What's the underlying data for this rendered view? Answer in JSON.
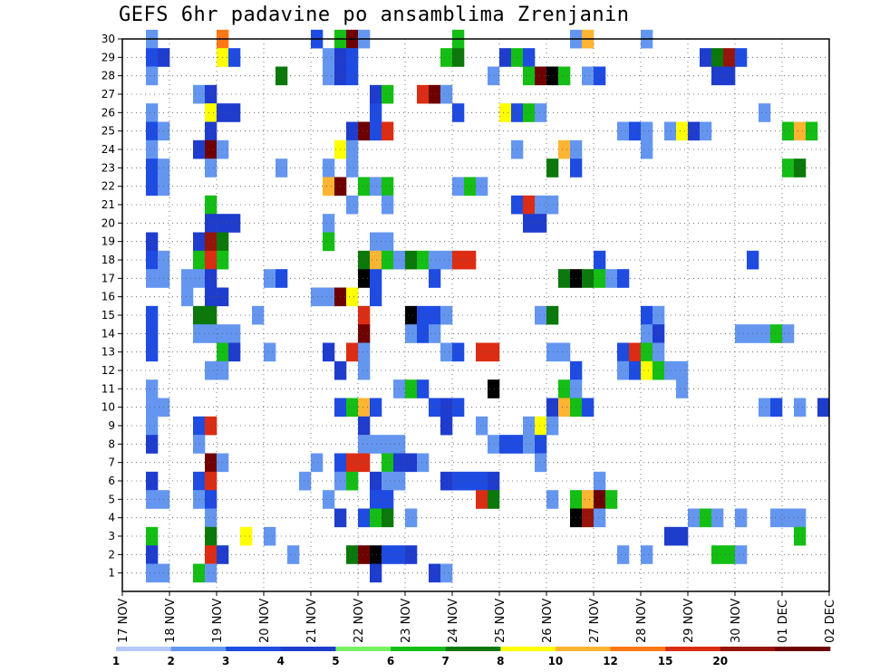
{
  "title": "GEFS 6hr padavine po ansamblima Zrenjanin",
  "chart_data": {
    "type": "heatmap",
    "title": "GEFS 6hr padavine po ansamblima Zrenjanin",
    "xlabel": "",
    "ylabel": "",
    "y_ticks": [
      "1",
      "2",
      "3",
      "4",
      "5",
      "6",
      "7",
      "8",
      "9",
      "10",
      "11",
      "12",
      "13",
      "14",
      "15",
      "16",
      "17",
      "18",
      "19",
      "20",
      "21",
      "22",
      "23",
      "24",
      "25",
      "26",
      "27",
      "28",
      "29",
      "30"
    ],
    "x_ticks": [
      "17 NOV",
      "18 NOV",
      "19 NOV",
      "20 NOV",
      "21 NOV",
      "22 NOV",
      "23 NOV",
      "24 NOV",
      "25 NOV",
      "26 NOV",
      "27 NOV",
      "28 NOV",
      "29 NOV",
      "30 NOV",
      "01 DEC",
      "02 DEC"
    ],
    "x_range_steps": [
      0,
      60
    ],
    "y_range": [
      0,
      30
    ],
    "steps_per_day": 4,
    "colorbar": {
      "labels": [
        "1",
        "2",
        "3",
        "4",
        "5",
        "6",
        "7",
        "8",
        "10",
        "12",
        "15",
        "20"
      ],
      "colors": [
        "#b4c8fa",
        "#6496f0",
        "#1e4be1",
        "#1e3ccd",
        "#78f064",
        "#14be14",
        "#0a780a",
        "#ffff00",
        "#ffb432",
        "#ff7814",
        "#dc2d14",
        "#96140a",
        "#6e0000"
      ]
    },
    "cells": [
      [
        30,
        2,
        1
      ],
      [
        30,
        8,
        9
      ],
      [
        30,
        16,
        2
      ],
      [
        30,
        18,
        5
      ],
      [
        30,
        19,
        12
      ],
      [
        30,
        20,
        1
      ],
      [
        30,
        28,
        5
      ],
      [
        30,
        38,
        1
      ],
      [
        30,
        39,
        8
      ],
      [
        30,
        44,
        1
      ],
      [
        29,
        2,
        2
      ],
      [
        29,
        3,
        3
      ],
      [
        29,
        8,
        7
      ],
      [
        29,
        9,
        2
      ],
      [
        29,
        17,
        1
      ],
      [
        29,
        18,
        3
      ],
      [
        29,
        19,
        2
      ],
      [
        29,
        27,
        5
      ],
      [
        29,
        28,
        6
      ],
      [
        29,
        32,
        3
      ],
      [
        29,
        33,
        5
      ],
      [
        29,
        34,
        2
      ],
      [
        29,
        49,
        3
      ],
      [
        29,
        50,
        6
      ],
      [
        29,
        51,
        11
      ],
      [
        29,
        52,
        2
      ],
      [
        28,
        2,
        1
      ],
      [
        28,
        13,
        6
      ],
      [
        28,
        17,
        1
      ],
      [
        28,
        18,
        3
      ],
      [
        28,
        19,
        2
      ],
      [
        28,
        31,
        1
      ],
      [
        28,
        34,
        5
      ],
      [
        28,
        35,
        12
      ],
      [
        28,
        36,
        13
      ],
      [
        28,
        37,
        5
      ],
      [
        28,
        39,
        1
      ],
      [
        28,
        40,
        2
      ],
      [
        28,
        50,
        3
      ],
      [
        28,
        51,
        3
      ],
      [
        27,
        6,
        1
      ],
      [
        27,
        7,
        3
      ],
      [
        27,
        21,
        3
      ],
      [
        27,
        22,
        5
      ],
      [
        27,
        25,
        10
      ],
      [
        27,
        26,
        12
      ],
      [
        27,
        27,
        1
      ],
      [
        26,
        2,
        1
      ],
      [
        26,
        7,
        7
      ],
      [
        26,
        8,
        3
      ],
      [
        26,
        9,
        3
      ],
      [
        26,
        21,
        2
      ],
      [
        26,
        28,
        2
      ],
      [
        26,
        32,
        7
      ],
      [
        26,
        33,
        2
      ],
      [
        26,
        34,
        5
      ],
      [
        26,
        35,
        1
      ],
      [
        26,
        54,
        1
      ],
      [
        25,
        2,
        2
      ],
      [
        25,
        3,
        1
      ],
      [
        25,
        7,
        3
      ],
      [
        25,
        19,
        3
      ],
      [
        25,
        20,
        12
      ],
      [
        25,
        21,
        2
      ],
      [
        25,
        22,
        10
      ],
      [
        25,
        42,
        1
      ],
      [
        25,
        43,
        2
      ],
      [
        25,
        44,
        1
      ],
      [
        25,
        46,
        1
      ],
      [
        25,
        47,
        7
      ],
      [
        25,
        48,
        3
      ],
      [
        25,
        49,
        1
      ],
      [
        25,
        56,
        5
      ],
      [
        25,
        57,
        8
      ],
      [
        25,
        58,
        5
      ],
      [
        24,
        2,
        1
      ],
      [
        24,
        6,
        3
      ],
      [
        24,
        7,
        12
      ],
      [
        24,
        8,
        1
      ],
      [
        24,
        18,
        7
      ],
      [
        24,
        19,
        1
      ],
      [
        24,
        33,
        1
      ],
      [
        24,
        37,
        8
      ],
      [
        24,
        38,
        1
      ],
      [
        24,
        44,
        1
      ],
      [
        23,
        2,
        2
      ],
      [
        23,
        3,
        1
      ],
      [
        23,
        7,
        1
      ],
      [
        23,
        13,
        1
      ],
      [
        23,
        17,
        1
      ],
      [
        23,
        19,
        1
      ],
      [
        23,
        36,
        6
      ],
      [
        23,
        38,
        2
      ],
      [
        23,
        56,
        5
      ],
      [
        23,
        57,
        6
      ],
      [
        22,
        2,
        2
      ],
      [
        22,
        3,
        1
      ],
      [
        22,
        17,
        8
      ],
      [
        22,
        18,
        12
      ],
      [
        22,
        20,
        5
      ],
      [
        22,
        21,
        1
      ],
      [
        22,
        22,
        5
      ],
      [
        22,
        28,
        1
      ],
      [
        22,
        29,
        5
      ],
      [
        22,
        30,
        1
      ],
      [
        21,
        7,
        5
      ],
      [
        21,
        19,
        1
      ],
      [
        21,
        22,
        1
      ],
      [
        21,
        33,
        2
      ],
      [
        21,
        34,
        10
      ],
      [
        21,
        35,
        1
      ],
      [
        21,
        36,
        1
      ],
      [
        20,
        7,
        3
      ],
      [
        20,
        8,
        3
      ],
      [
        20,
        9,
        3
      ],
      [
        20,
        17,
        1
      ],
      [
        20,
        34,
        3
      ],
      [
        20,
        35,
        3
      ],
      [
        19,
        2,
        3
      ],
      [
        19,
        6,
        3
      ],
      [
        19,
        7,
        11
      ],
      [
        19,
        8,
        6
      ],
      [
        19,
        17,
        5
      ],
      [
        19,
        21,
        1
      ],
      [
        19,
        22,
        1
      ],
      [
        18,
        2,
        2
      ],
      [
        18,
        3,
        1
      ],
      [
        18,
        6,
        5
      ],
      [
        18,
        7,
        10
      ],
      [
        18,
        8,
        5
      ],
      [
        18,
        20,
        6
      ],
      [
        18,
        21,
        8
      ],
      [
        18,
        22,
        5
      ],
      [
        18,
        23,
        1
      ],
      [
        18,
        24,
        6
      ],
      [
        18,
        25,
        5
      ],
      [
        18,
        26,
        1
      ],
      [
        18,
        27,
        1
      ],
      [
        18,
        28,
        10
      ],
      [
        18,
        29,
        10
      ],
      [
        18,
        40,
        2
      ],
      [
        18,
        53,
        2
      ],
      [
        17,
        2,
        1
      ],
      [
        17,
        3,
        1
      ],
      [
        17,
        5,
        1
      ],
      [
        17,
        6,
        1
      ],
      [
        17,
        7,
        3
      ],
      [
        17,
        12,
        1
      ],
      [
        17,
        13,
        2
      ],
      [
        17,
        20,
        13
      ],
      [
        17,
        21,
        2
      ],
      [
        17,
        26,
        2
      ],
      [
        17,
        37,
        6
      ],
      [
        17,
        38,
        13
      ],
      [
        17,
        39,
        6
      ],
      [
        17,
        40,
        5
      ],
      [
        17,
        41,
        1
      ],
      [
        17,
        42,
        2
      ],
      [
        16,
        5,
        1
      ],
      [
        16,
        7,
        3
      ],
      [
        16,
        8,
        3
      ],
      [
        16,
        16,
        1
      ],
      [
        16,
        17,
        1
      ],
      [
        16,
        18,
        12
      ],
      [
        16,
        19,
        7
      ],
      [
        16,
        21,
        2
      ],
      [
        15,
        2,
        2
      ],
      [
        15,
        6,
        6
      ],
      [
        15,
        7,
        6
      ],
      [
        15,
        11,
        1
      ],
      [
        15,
        20,
        10
      ],
      [
        15,
        24,
        13
      ],
      [
        15,
        25,
        2
      ],
      [
        15,
        26,
        2
      ],
      [
        15,
        27,
        1
      ],
      [
        15,
        35,
        1
      ],
      [
        15,
        36,
        6
      ],
      [
        15,
        44,
        2
      ],
      [
        15,
        45,
        1
      ],
      [
        14,
        2,
        2
      ],
      [
        14,
        6,
        1
      ],
      [
        14,
        7,
        1
      ],
      [
        14,
        8,
        1
      ],
      [
        14,
        9,
        1
      ],
      [
        14,
        20,
        12
      ],
      [
        14,
        24,
        1
      ],
      [
        14,
        25,
        2
      ],
      [
        14,
        26,
        1
      ],
      [
        14,
        44,
        1
      ],
      [
        14,
        45,
        3
      ],
      [
        14,
        52,
        1
      ],
      [
        14,
        53,
        1
      ],
      [
        14,
        54,
        1
      ],
      [
        14,
        55,
        5
      ],
      [
        14,
        56,
        1
      ],
      [
        13,
        2,
        2
      ],
      [
        13,
        8,
        5
      ],
      [
        13,
        9,
        3
      ],
      [
        13,
        12,
        1
      ],
      [
        13,
        17,
        3
      ],
      [
        13,
        19,
        10
      ],
      [
        13,
        20,
        1
      ],
      [
        13,
        27,
        1
      ],
      [
        13,
        28,
        2
      ],
      [
        13,
        30,
        10
      ],
      [
        13,
        31,
        10
      ],
      [
        13,
        36,
        1
      ],
      [
        13,
        37,
        1
      ],
      [
        13,
        42,
        2
      ],
      [
        13,
        43,
        10
      ],
      [
        13,
        44,
        5
      ],
      [
        13,
        45,
        1
      ],
      [
        12,
        7,
        1
      ],
      [
        12,
        8,
        1
      ],
      [
        12,
        18,
        3
      ],
      [
        12,
        20,
        1
      ],
      [
        12,
        38,
        2
      ],
      [
        12,
        42,
        1
      ],
      [
        12,
        43,
        2
      ],
      [
        12,
        44,
        7
      ],
      [
        12,
        45,
        5
      ],
      [
        12,
        46,
        1
      ],
      [
        12,
        47,
        1
      ],
      [
        11,
        2,
        1
      ],
      [
        11,
        23,
        1
      ],
      [
        11,
        24,
        5
      ],
      [
        11,
        25,
        2
      ],
      [
        11,
        31,
        13
      ],
      [
        11,
        37,
        5
      ],
      [
        11,
        38,
        1
      ],
      [
        11,
        47,
        1
      ],
      [
        10,
        2,
        1
      ],
      [
        10,
        3,
        1
      ],
      [
        10,
        18,
        2
      ],
      [
        10,
        19,
        5
      ],
      [
        10,
        20,
        8
      ],
      [
        10,
        21,
        2
      ],
      [
        10,
        26,
        2
      ],
      [
        10,
        27,
        3
      ],
      [
        10,
        28,
        2
      ],
      [
        10,
        36,
        3
      ],
      [
        10,
        37,
        8
      ],
      [
        10,
        38,
        5
      ],
      [
        10,
        39,
        2
      ],
      [
        10,
        54,
        1
      ],
      [
        10,
        55,
        2
      ],
      [
        10,
        57,
        1
      ],
      [
        10,
        59,
        3
      ],
      [
        9,
        2,
        1
      ],
      [
        9,
        6,
        2
      ],
      [
        9,
        7,
        10
      ],
      [
        9,
        20,
        3
      ],
      [
        9,
        27,
        3
      ],
      [
        9,
        30,
        1
      ],
      [
        9,
        34,
        1
      ],
      [
        9,
        35,
        7
      ],
      [
        9,
        36,
        1
      ],
      [
        8,
        2,
        3
      ],
      [
        8,
        6,
        1
      ],
      [
        8,
        20,
        1
      ],
      [
        8,
        21,
        1
      ],
      [
        8,
        22,
        1
      ],
      [
        8,
        23,
        1
      ],
      [
        8,
        31,
        1
      ],
      [
        8,
        32,
        2
      ],
      [
        8,
        33,
        2
      ],
      [
        8,
        34,
        1
      ],
      [
        8,
        35,
        2
      ],
      [
        7,
        7,
        12
      ],
      [
        7,
        8,
        1
      ],
      [
        7,
        16,
        1
      ],
      [
        7,
        18,
        2
      ],
      [
        7,
        19,
        10
      ],
      [
        7,
        20,
        10
      ],
      [
        7,
        22,
        5
      ],
      [
        7,
        23,
        3
      ],
      [
        7,
        24,
        3
      ],
      [
        7,
        25,
        1
      ],
      [
        7,
        35,
        1
      ],
      [
        6,
        2,
        3
      ],
      [
        6,
        6,
        2
      ],
      [
        6,
        7,
        10
      ],
      [
        6,
        15,
        1
      ],
      [
        6,
        18,
        1
      ],
      [
        6,
        19,
        5
      ],
      [
        6,
        21,
        3
      ],
      [
        6,
        22,
        1
      ],
      [
        6,
        23,
        1
      ],
      [
        6,
        27,
        3
      ],
      [
        6,
        28,
        2
      ],
      [
        6,
        29,
        2
      ],
      [
        6,
        30,
        2
      ],
      [
        6,
        31,
        3
      ],
      [
        6,
        40,
        1
      ],
      [
        5,
        2,
        1
      ],
      [
        5,
        3,
        1
      ],
      [
        5,
        6,
        1
      ],
      [
        5,
        7,
        2
      ],
      [
        5,
        17,
        1
      ],
      [
        5,
        21,
        2
      ],
      [
        5,
        22,
        2
      ],
      [
        5,
        30,
        10
      ],
      [
        5,
        31,
        6
      ],
      [
        5,
        36,
        1
      ],
      [
        5,
        38,
        5
      ],
      [
        5,
        39,
        8
      ],
      [
        5,
        40,
        12
      ],
      [
        5,
        41,
        5
      ],
      [
        4,
        7,
        1
      ],
      [
        4,
        18,
        3
      ],
      [
        4,
        20,
        2
      ],
      [
        4,
        21,
        5
      ],
      [
        4,
        22,
        6
      ],
      [
        4,
        24,
        1
      ],
      [
        4,
        38,
        13
      ],
      [
        4,
        39,
        11
      ],
      [
        4,
        40,
        1
      ],
      [
        4,
        48,
        1
      ],
      [
        4,
        49,
        5
      ],
      [
        4,
        50,
        1
      ],
      [
        4,
        52,
        1
      ],
      [
        4,
        55,
        1
      ],
      [
        4,
        56,
        1
      ],
      [
        4,
        57,
        1
      ],
      [
        3,
        2,
        5
      ],
      [
        3,
        7,
        6
      ],
      [
        3,
        10,
        7
      ],
      [
        3,
        12,
        1
      ],
      [
        3,
        46,
        3
      ],
      [
        3,
        47,
        3
      ],
      [
        3,
        57,
        5
      ],
      [
        2,
        2,
        3
      ],
      [
        2,
        7,
        10
      ],
      [
        2,
        8,
        3
      ],
      [
        2,
        14,
        1
      ],
      [
        2,
        19,
        6
      ],
      [
        2,
        20,
        12
      ],
      [
        2,
        21,
        13
      ],
      [
        2,
        22,
        2
      ],
      [
        2,
        23,
        2
      ],
      [
        2,
        24,
        3
      ],
      [
        2,
        42,
        1
      ],
      [
        2,
        44,
        1
      ],
      [
        2,
        50,
        5
      ],
      [
        2,
        51,
        5
      ],
      [
        2,
        52,
        1
      ],
      [
        1,
        2,
        1
      ],
      [
        1,
        3,
        1
      ],
      [
        1,
        6,
        5
      ],
      [
        1,
        7,
        1
      ],
      [
        1,
        21,
        3
      ],
      [
        1,
        26,
        3
      ],
      [
        1,
        27,
        1
      ]
    ]
  }
}
